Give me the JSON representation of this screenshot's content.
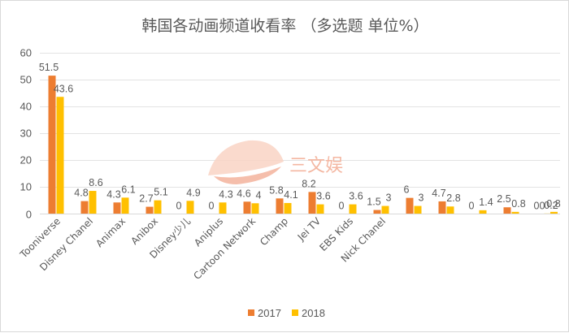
{
  "chart_data": {
    "type": "bar",
    "title": "韩国各动画频道收看率 （多选题 单位%）",
    "categories": [
      "Tooniverse",
      "Disney Chanel",
      "Animax",
      "Anibox",
      "Disney少儿",
      "Aniplus",
      "Cartoon Network",
      "Champ",
      "Jei TV",
      "EBS Kids",
      "Nick Chanel",
      "",
      "",
      "",
      "",
      ""
    ],
    "series": [
      {
        "name": "2017",
        "values": [
          51.5,
          4.8,
          4.3,
          2.7,
          0,
          0,
          4.6,
          5.8,
          8.2,
          0,
          1.5,
          6,
          4.7,
          0,
          2.5,
          0
        ],
        "color": "#ed7d31"
      },
      {
        "name": "2018",
        "values": [
          43.6,
          8.6,
          6.1,
          5.1,
          4.9,
          4.3,
          4,
          4.1,
          3.6,
          3.6,
          3,
          3,
          2.8,
          1.4,
          0.8,
          0.2
        ],
        "color": "#ffc000"
      }
    ],
    "extra_series_2018_last": 0.8,
    "extra_series_2017_last": 0,
    "ylim": [
      0,
      60
    ],
    "yticks": [
      0,
      10,
      20,
      30,
      40,
      50,
      60
    ],
    "grid": true,
    "legend_position": "bottom",
    "xlabel": "",
    "ylabel": ""
  },
  "watermark": {
    "text": "三文娱",
    "color": "#f4b7a2"
  }
}
